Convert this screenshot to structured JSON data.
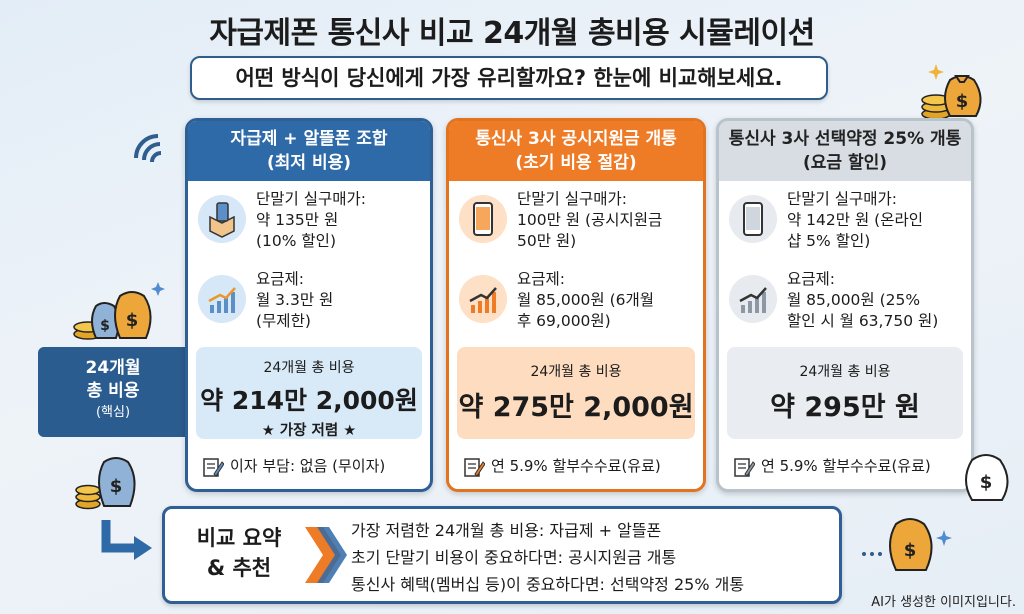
{
  "title": "자급제폰 통신사 비교 24개월 총비용 시뮬레이션",
  "subtitle": "어떤 방식이 당신에게 가장 유리할까요? 한눈에 비교해보세요.",
  "side_label": {
    "line1": "24개월",
    "line2": "총 비용",
    "line3": "(핵심)"
  },
  "cards": [
    {
      "title": "자급제 + 알뜰폰 조합",
      "subtitle": "(최저 비용)",
      "price_label": "단말기 실구매가:",
      "price_line1": "약 135만 원",
      "price_line2": "(10% 할인)",
      "price_line3": "",
      "plan_label": "요금제:",
      "plan_line1": "월 3.3만 원",
      "plan_line2": "(무제한)",
      "total_label": "24개월 총 비용",
      "total_value": "약 214만 2,000원",
      "total_tag": "★ 가장 저렴 ★",
      "note": "이자 부담: 없음 (무이자)",
      "accent": "#2f6aa8"
    },
    {
      "title": "통신사 3사 공시지원금 개통",
      "subtitle": "(초기 비용 절감)",
      "price_label": "단말기 실구매가:",
      "price_line1": "100만 원 (공시지원금",
      "price_line2": "50만 원)",
      "price_line3": "",
      "plan_label": "요금제:",
      "plan_line1": "월 85,000원 (6개월",
      "plan_line2": "후 69,000원)",
      "total_label": "24개월 총 비용",
      "total_value": "약 275만 2,000원",
      "total_tag": "",
      "note": "연 5.9% 할부수수료(유료)",
      "accent": "#ee7b26"
    },
    {
      "title": "통신사 3사 선택약정 25% 개통",
      "subtitle": "(요금 할인)",
      "price_label": "단말기 실구매가:",
      "price_line1": "약 142만 원 (온라인",
      "price_line2": "샵 5% 할인)",
      "price_line3": "",
      "plan_label": "요금제:",
      "plan_line1": "월 85,000원 (25%",
      "plan_line2": "할인 시 월 63,750 원)",
      "total_label": "24개월 총 비용",
      "total_value": "약 295만 원",
      "total_tag": "",
      "note": "연 5.9% 할부수수료(유료)",
      "accent": "#d7dde3"
    }
  ],
  "summary": {
    "head_line1": "비교 요약",
    "head_line2": "& 추천",
    "lines": [
      "가장 저렴한 24개월 총 비용: 자급제 + 알뜰폰",
      "초기 단말기 비용이 중요하다면: 공시지원금 개통",
      "통신사 혜택(멤버십 등)이 중요하다면: 선택약정 25% 개통"
    ]
  },
  "footer": "AI가 생성한 이미지입니다.",
  "icons": [
    "wifi-icon",
    "money-bag-icon",
    "coin-stack-icon",
    "phone-box-icon",
    "smartphone-icon",
    "chart-up-icon",
    "memo-pencil-icon",
    "arrow-icon",
    "chevron-icon"
  ]
}
